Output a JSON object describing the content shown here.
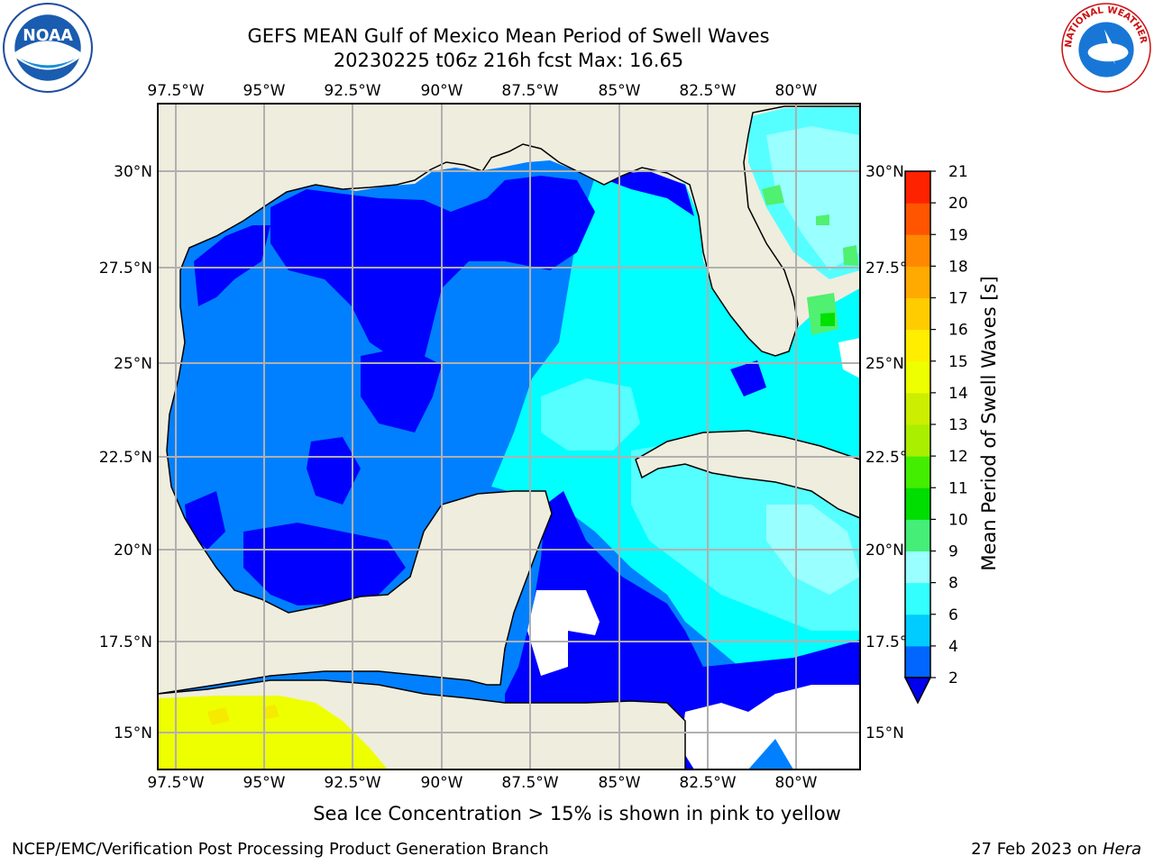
{
  "header": {
    "title_line1": "GEFS MEAN Gulf of Mexico Mean Period of Swell Waves",
    "title_line2": "20230225 t06z 216h fcst   Max: 16.65"
  },
  "logos": {
    "left": {
      "icon": "noaa-logo",
      "text": "NOAA"
    },
    "right": {
      "icon": "national-weather-service-logo",
      "text": "NATIONAL WEATHER SERVICE"
    }
  },
  "map": {
    "lon_labels": [
      "97.5°W",
      "95°W",
      "92.5°W",
      "90°W",
      "87.5°W",
      "85°W",
      "82.5°W",
      "80°W"
    ],
    "lat_labels": [
      "30°N",
      "27.5°N",
      "25°N",
      "22.5°N",
      "20°N",
      "17.5°N",
      "15°N"
    ],
    "land_color": "#efedde",
    "ocean_colors": {
      "2-4": "#0000ff",
      "4-6": "#0080ff",
      "6-8": "#00ffff",
      "8-9": "#55ffff",
      "9-10": "#99ffff",
      "10-11": "#50f070",
      "11-12": "#00e000",
      "14-15": "#eeff00"
    }
  },
  "colorbar": {
    "label": "Mean Period of Swell Waves [s]",
    "ticks": [
      "2",
      "4",
      "6",
      "8",
      "9",
      "10",
      "11",
      "12",
      "13",
      "14",
      "15",
      "16",
      "17",
      "18",
      "19",
      "20",
      "21"
    ],
    "colors": [
      "#0066ff",
      "#00ccff",
      "#33ffff",
      "#99ffff",
      "#44ee77",
      "#00dd00",
      "#44ee00",
      "#aaee00",
      "#ccee00",
      "#eeff00",
      "#ffee00",
      "#ffcc00",
      "#ffaa00",
      "#ff8800",
      "#ff5500",
      "#ff2200"
    ]
  },
  "footer": {
    "note": "Sea Ice Concentration > 15% is shown in pink to yellow",
    "credit": "NCEP/EMC/Verification Post Processing Product Generation Branch",
    "date": "27 Feb 2023 on ",
    "machine": "Hera"
  }
}
